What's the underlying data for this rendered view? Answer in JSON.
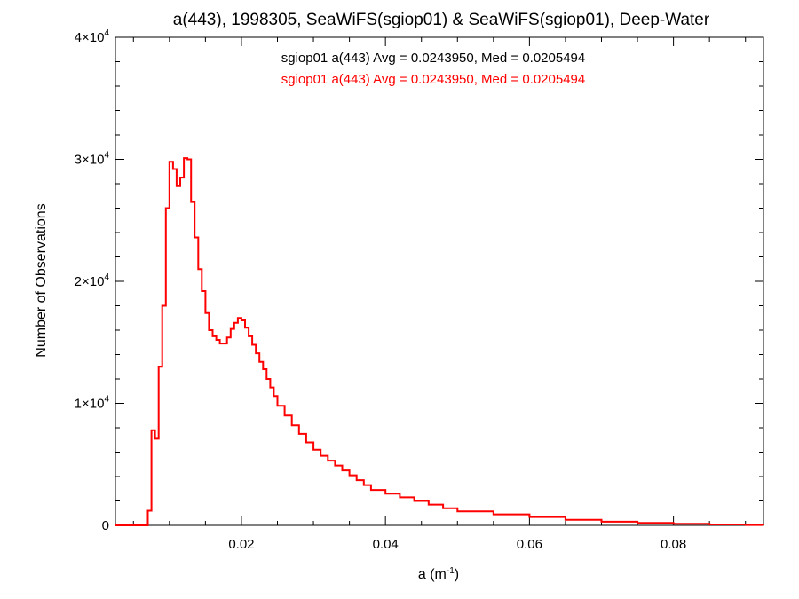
{
  "chart_data": {
    "type": "line",
    "title": "a(443), 1998305, SeaWiFS(sgiop01) & SeaWiFS(sgiop01), Deep-Water",
    "xlabel": "a (m",
    "xlabel_exponent": "-1",
    "xlabel_suffix": ")",
    "ylabel": "Number of Observations",
    "xlim": [
      0.0025,
      0.0925
    ],
    "ylim": [
      0,
      40000
    ],
    "x_ticks": [
      {
        "value": 0.02,
        "label": "0.02"
      },
      {
        "value": 0.04,
        "label": "0.04"
      },
      {
        "value": 0.06,
        "label": "0.06"
      },
      {
        "value": 0.08,
        "label": "0.08"
      }
    ],
    "y_ticks": [
      {
        "value": 0,
        "mantissa": "0",
        "exponent": ""
      },
      {
        "value": 10000,
        "mantissa": "1×10",
        "exponent": "4"
      },
      {
        "value": 20000,
        "mantissa": "2×10",
        "exponent": "4"
      },
      {
        "value": 30000,
        "mantissa": "3×10",
        "exponent": "4"
      },
      {
        "value": 40000,
        "mantissa": "4×10",
        "exponent": "4"
      }
    ],
    "grid": false,
    "annotations": [
      {
        "text": "sgiop01 a(443) Avg = 0.0243950, Med = 0.0205494",
        "color": "#000000"
      },
      {
        "text": "sgiop01 a(443) Avg = 0.0243950, Med = 0.0205494",
        "color": "#ff0000"
      }
    ],
    "series": [
      {
        "color": "#ff0000",
        "x": [
          0.0025,
          0.007,
          0.0075,
          0.008,
          0.0085,
          0.009,
          0.0095,
          0.01,
          0.0105,
          0.011,
          0.0115,
          0.012,
          0.0125,
          0.013,
          0.0135,
          0.014,
          0.0145,
          0.015,
          0.0155,
          0.016,
          0.0165,
          0.017,
          0.0175,
          0.018,
          0.0185,
          0.019,
          0.0195,
          0.02,
          0.0205,
          0.021,
          0.0215,
          0.022,
          0.0225,
          0.023,
          0.0235,
          0.024,
          0.0245,
          0.025,
          0.026,
          0.027,
          0.028,
          0.029,
          0.03,
          0.031,
          0.032,
          0.033,
          0.034,
          0.035,
          0.036,
          0.037,
          0.038,
          0.04,
          0.042,
          0.044,
          0.046,
          0.048,
          0.05,
          0.055,
          0.06,
          0.065,
          0.07,
          0.075,
          0.08,
          0.085,
          0.09,
          0.0925
        ],
        "values": [
          0,
          1200,
          7800,
          7100,
          13000,
          18000,
          26000,
          29800,
          29200,
          27800,
          28500,
          30100,
          30000,
          26500,
          23600,
          21000,
          19200,
          17400,
          16000,
          15500,
          15200,
          14900,
          14900,
          15400,
          16100,
          16600,
          17000,
          16800,
          16200,
          15500,
          14800,
          14100,
          13400,
          12800,
          12000,
          11300,
          10600,
          9800,
          9000,
          8200,
          7500,
          6800,
          6200,
          5700,
          5300,
          4900,
          4500,
          4100,
          3700,
          3300,
          2900,
          2600,
          2300,
          2000,
          1700,
          1400,
          1150,
          900,
          680,
          450,
          300,
          200,
          130,
          70,
          30,
          10
        ]
      }
    ]
  }
}
